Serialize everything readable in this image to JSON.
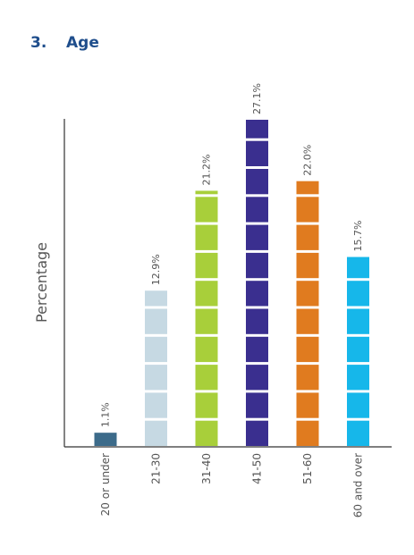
{
  "section": {
    "number": "3.",
    "title": "Age"
  },
  "chart_data": {
    "type": "bar",
    "categories": [
      "20 or under",
      "21-30",
      "31-40",
      "41-50",
      "51-60",
      "60 and over"
    ],
    "values": [
      1.1,
      12.9,
      21.2,
      27.1,
      22.0,
      15.7
    ],
    "value_labels": [
      "1.1%",
      "12.9%",
      "21.2%",
      "27.1%",
      "22.0%",
      "15.7%"
    ],
    "colors": [
      "#3c6b8a",
      "#c6d9e3",
      "#a8cf3a",
      "#3a2f8f",
      "#e07b1f",
      "#16b7ea"
    ],
    "ylabel": "Percentage",
    "xlabel": "",
    "ylim": [
      0,
      27.1
    ],
    "grid": false,
    "legend": "none"
  }
}
